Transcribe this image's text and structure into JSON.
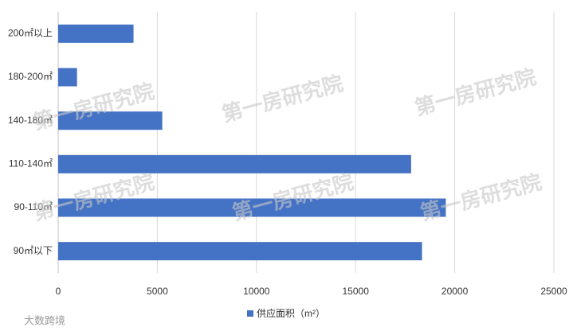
{
  "chart_data": {
    "type": "hbar",
    "categories": [
      "200㎡以上",
      "180-200㎡",
      "140-180㎡",
      "110-140㎡",
      "90-110㎡",
      "90㎡以下"
    ],
    "series": [
      {
        "name": "供应面积（m²）",
        "color": "#4472c4",
        "values": [
          3800,
          950,
          5250,
          17800,
          19550,
          18350
        ]
      }
    ],
    "xlim": [
      0,
      25000
    ],
    "xticks": [
      0,
      5000,
      10000,
      15000,
      20000,
      25000
    ],
    "grid": true,
    "legend": "bottom",
    "watermark": "第一房研究院",
    "brand": "大数跨境"
  }
}
